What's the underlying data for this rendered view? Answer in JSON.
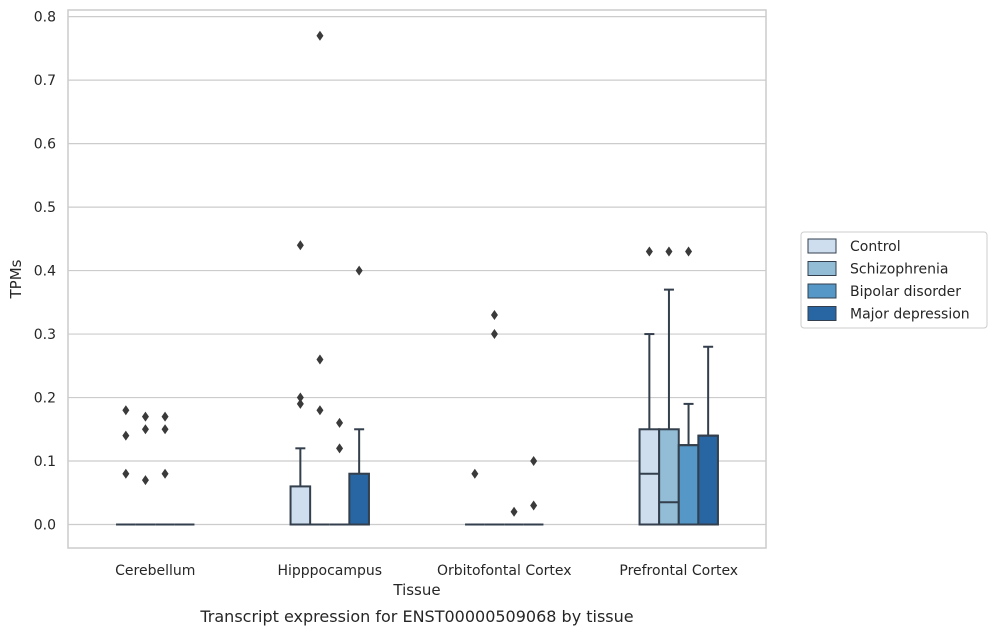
{
  "chart_data": {
    "type": "box",
    "title": "",
    "caption": "Transcript expression for ENST00000509068 by tissue",
    "xlabel": "Tissue",
    "ylabel": "TPMs",
    "ylim": [
      -0.038,
      0.812
    ],
    "yticks": [
      0.0,
      0.1,
      0.2,
      0.3,
      0.4,
      0.5,
      0.6,
      0.7,
      0.8
    ],
    "ytick_labels": [
      "0.0",
      "0.1",
      "0.2",
      "0.3",
      "0.4",
      "0.5",
      "0.6",
      "0.7",
      "0.8"
    ],
    "grid": "horizontal",
    "legend_position": "right",
    "categories": [
      "Cerebellum",
      "Hipppocampus",
      "Orbitofontal Cortex",
      "Prefrontal Cortex"
    ],
    "series": [
      {
        "name": "Control",
        "color": "#cfdeee",
        "boxes": [
          {
            "q1": 0,
            "median": 0,
            "q3": 0,
            "whisker_low": 0,
            "whisker_high": 0,
            "outliers": [
              0.18,
              0.14,
              0.08
            ]
          },
          {
            "q1": 0,
            "median": 0,
            "q3": 0.06,
            "whisker_low": 0,
            "whisker_high": 0.12,
            "outliers": [
              0.44,
              0.2,
              0.19
            ]
          },
          {
            "q1": 0,
            "median": 0,
            "q3": 0,
            "whisker_low": 0,
            "whisker_high": 0,
            "outliers": [
              0.08
            ]
          },
          {
            "q1": 0,
            "median": 0.08,
            "q3": 0.15,
            "whisker_low": 0,
            "whisker_high": 0.3,
            "outliers": [
              0.43
            ]
          }
        ]
      },
      {
        "name": "Schizophrenia",
        "color": "#93bdd6",
        "boxes": [
          {
            "q1": 0,
            "median": 0,
            "q3": 0,
            "whisker_low": 0,
            "whisker_high": 0,
            "outliers": [
              0.17,
              0.15,
              0.07
            ]
          },
          {
            "q1": 0,
            "median": 0,
            "q3": 0,
            "whisker_low": 0,
            "whisker_high": 0,
            "outliers": [
              0.77,
              0.26,
              0.18
            ]
          },
          {
            "q1": 0,
            "median": 0,
            "q3": 0,
            "whisker_low": 0,
            "whisker_high": 0,
            "outliers": [
              0.33,
              0.3
            ]
          },
          {
            "q1": 0,
            "median": 0.035,
            "q3": 0.15,
            "whisker_low": 0,
            "whisker_high": 0.37,
            "outliers": [
              0.43
            ]
          }
        ]
      },
      {
        "name": "Bipolar disorder",
        "color": "#5597c6",
        "boxes": [
          {
            "q1": 0,
            "median": 0,
            "q3": 0,
            "whisker_low": 0,
            "whisker_high": 0,
            "outliers": [
              0.17,
              0.15,
              0.08
            ]
          },
          {
            "q1": 0,
            "median": 0,
            "q3": 0,
            "whisker_low": 0,
            "whisker_high": 0,
            "outliers": [
              0.16,
              0.12
            ]
          },
          {
            "q1": 0,
            "median": 0,
            "q3": 0,
            "whisker_low": 0,
            "whisker_high": 0,
            "outliers": [
              0.02
            ]
          },
          {
            "q1": 0,
            "median": 0.125,
            "q3": 0.125,
            "whisker_low": 0,
            "whisker_high": 0.19,
            "outliers": [
              0.43
            ]
          }
        ]
      },
      {
        "name": "Major depression",
        "color": "#2865a3",
        "boxes": [
          {
            "q1": 0,
            "median": 0,
            "q3": 0,
            "whisker_low": 0,
            "whisker_high": 0,
            "outliers": []
          },
          {
            "q1": 0,
            "median": 0,
            "q3": 0.08,
            "whisker_low": 0,
            "whisker_high": 0.15,
            "outliers": [
              0.4
            ]
          },
          {
            "q1": 0,
            "median": 0,
            "q3": 0,
            "whisker_low": 0,
            "whisker_high": 0,
            "outliers": [
              0.1,
              0.03
            ]
          },
          {
            "q1": 0,
            "median": 0.14,
            "q3": 0.14,
            "whisker_low": 0,
            "whisker_high": 0.28,
            "outliers": []
          }
        ]
      }
    ]
  }
}
